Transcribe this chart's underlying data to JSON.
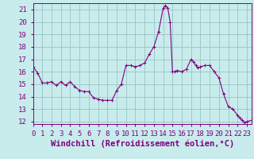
{
  "title": "",
  "xlabel": "Windchill (Refroidissement éolien,°C)",
  "ylabel": "",
  "background_color": "#c8ecec",
  "grid_color": "#a0c8c8",
  "line_color": "#800080",
  "marker_color": "#800080",
  "x_values": [
    0,
    0.5,
    1,
    1.5,
    2,
    2.5,
    3,
    3.5,
    4,
    4.5,
    5,
    5.5,
    6,
    6.5,
    7,
    7.5,
    8,
    8.5,
    9,
    9.5,
    10,
    10.5,
    11,
    11.5,
    12,
    12.5,
    13,
    13.5,
    14,
    14.25,
    14.5,
    14.75,
    15,
    15.25,
    15.5,
    16,
    16.5,
    17,
    17.25,
    17.5,
    17.75,
    18,
    18.5,
    19,
    19.5,
    20,
    20.5,
    21,
    21.5,
    22,
    22.25,
    22.5,
    22.75,
    23,
    23.5
  ],
  "y_values": [
    16.4,
    15.9,
    15.1,
    15.1,
    15.2,
    14.9,
    15.2,
    14.9,
    15.2,
    14.8,
    14.5,
    14.4,
    14.4,
    13.9,
    13.8,
    13.7,
    13.7,
    13.7,
    14.5,
    15.0,
    16.5,
    16.5,
    16.4,
    16.5,
    16.7,
    17.4,
    18.0,
    19.2,
    21.1,
    21.3,
    21.1,
    20.0,
    16.0,
    16.0,
    16.1,
    16.0,
    16.2,
    17.0,
    16.8,
    16.5,
    16.3,
    16.4,
    16.5,
    16.5,
    16.0,
    15.5,
    14.2,
    13.2,
    13.0,
    12.5,
    12.3,
    12.1,
    11.9,
    12.0,
    12.1
  ],
  "xlim": [
    0,
    23.5
  ],
  "ylim": [
    11.8,
    21.5
  ],
  "xticks": [
    0,
    1,
    2,
    3,
    4,
    5,
    6,
    7,
    8,
    9,
    10,
    11,
    12,
    13,
    14,
    15,
    16,
    17,
    18,
    19,
    20,
    21,
    22,
    23
  ],
  "yticks": [
    12,
    13,
    14,
    15,
    16,
    17,
    18,
    19,
    20,
    21
  ],
  "xlabel_fontsize": 7.5,
  "tick_fontsize": 6.5
}
